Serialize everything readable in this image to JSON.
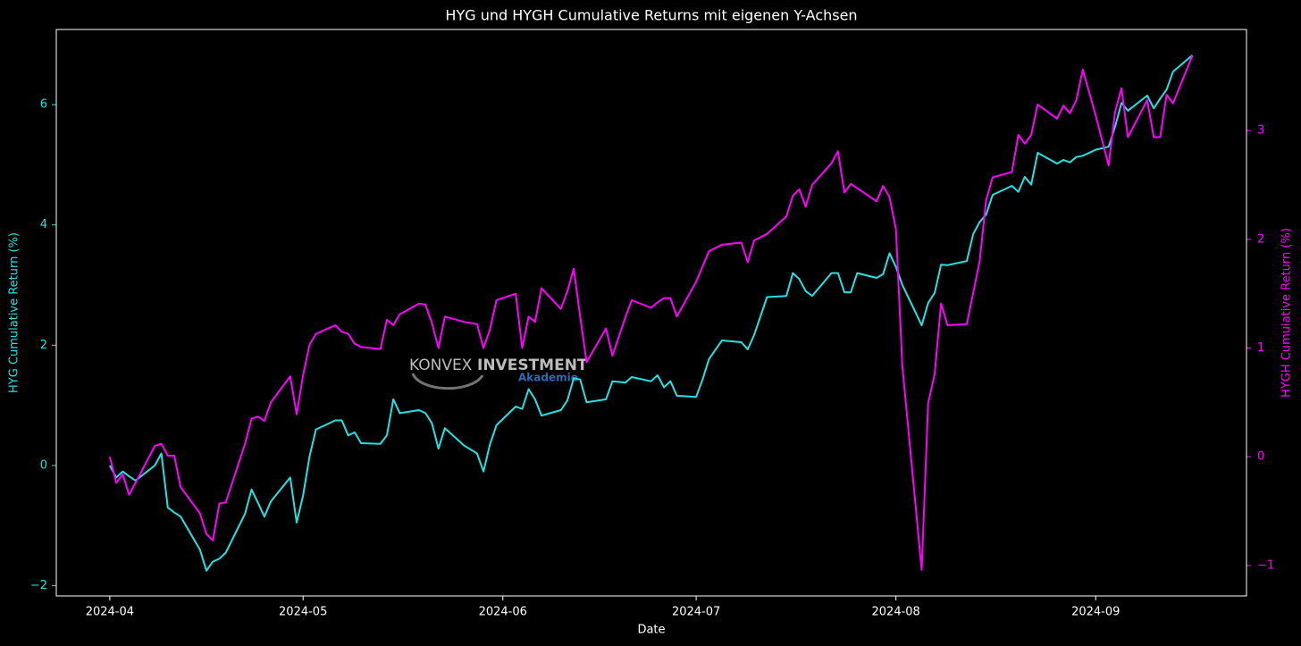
{
  "chart_data": {
    "type": "line",
    "title": "HYG und HYGH Cumulative Returns mit eigenen Y-Achsen",
    "x_label": "Date",
    "y_label": "HYG Cumulative Return (%)",
    "y2_label": "HYGH Cumulative Return (%)",
    "x": [
      0,
      1,
      2,
      3,
      4,
      7,
      8,
      9,
      10,
      11,
      14,
      15,
      16,
      17,
      18,
      21,
      22,
      23,
      24,
      25,
      28,
      29,
      30,
      31,
      32,
      35,
      36,
      37,
      38,
      39,
      42,
      43,
      44,
      45,
      48,
      49,
      50,
      51,
      52,
      55,
      57,
      58,
      59,
      60,
      63,
      64,
      65,
      66,
      67,
      70,
      71,
      72,
      73,
      74,
      77,
      78,
      80,
      81,
      84,
      85,
      86,
      87,
      88,
      91,
      92,
      93,
      95,
      98,
      99,
      100,
      102,
      105,
      106,
      107,
      108,
      109,
      112,
      113,
      114,
      115,
      116,
      119,
      120,
      121,
      122,
      123,
      126,
      127,
      128,
      129,
      130,
      133,
      134,
      135,
      136,
      137,
      140,
      141,
      142,
      143,
      144,
      147,
      148,
      149,
      150,
      151,
      153,
      155,
      156,
      157,
      158,
      161,
      162,
      163,
      164,
      165,
      168
    ],
    "xlim": [
      -8.3,
      176.4
    ],
    "xticks": [
      {
        "value": 0,
        "label": "2024-04"
      },
      {
        "value": 30,
        "label": "2024-05"
      },
      {
        "value": 61,
        "label": "2024-06"
      },
      {
        "value": 91,
        "label": "2024-07"
      },
      {
        "value": 122,
        "label": "2024-08"
      },
      {
        "value": 153,
        "label": "2024-09"
      }
    ],
    "ylim": [
      -2.17,
      7.25
    ],
    "yticks": [
      {
        "value": -2,
        "label": "−2"
      },
      0,
      2,
      4,
      6
    ],
    "y2lim": [
      -1.28,
      3.93
    ],
    "y2ticks": [
      {
        "value": -1,
        "label": "−1"
      },
      0,
      1,
      2,
      3
    ],
    "grid": false,
    "series": [
      {
        "name": "HYG",
        "color": "#22e3e3",
        "axis": "y",
        "values": [
          0,
          -0.2,
          -0.1,
          -0.18,
          -0.25,
          0,
          0.2,
          -0.7,
          -0.78,
          -0.85,
          -1.4,
          -1.75,
          -1.6,
          -1.55,
          -1.45,
          -0.8,
          -0.4,
          -0.62,
          -0.85,
          -0.6,
          -0.2,
          -0.95,
          -0.5,
          0.15,
          0.6,
          0.75,
          0.75,
          0.5,
          0.55,
          0.37,
          0.36,
          0.5,
          1.1,
          0.87,
          0.92,
          0.87,
          0.7,
          0.28,
          0.62,
          0.33,
          0.2,
          -0.1,
          0.35,
          0.67,
          0.98,
          0.94,
          1.27,
          1.1,
          0.83,
          0.92,
          1.08,
          1.45,
          1.43,
          1.05,
          1.1,
          1.4,
          1.38,
          1.47,
          1.4,
          1.5,
          1.3,
          1.4,
          1.16,
          1.14,
          1.43,
          1.77,
          2.08,
          2.05,
          1.93,
          2.17,
          2.8,
          2.82,
          3.2,
          3.1,
          2.9,
          2.82,
          3.2,
          3.2,
          2.88,
          2.88,
          3.2,
          3.12,
          3.18,
          3.53,
          3.3,
          3.0,
          2.33,
          2.7,
          2.87,
          3.34,
          3.33,
          3.4,
          3.85,
          4.05,
          4.17,
          4.5,
          4.65,
          4.55,
          4.8,
          4.67,
          5.2,
          5.02,
          5.08,
          5.04,
          5.13,
          5.15,
          5.25,
          5.3,
          5.63,
          6.03,
          5.9,
          6.15,
          5.94,
          6.1,
          6.25,
          6.55,
          6.82
        ]
      },
      {
        "name": "HYGH",
        "color": "#ff00ff",
        "axis": "y2",
        "values": [
          0,
          -0.24,
          -0.16,
          -0.35,
          -0.24,
          0.1,
          0.12,
          0.01,
          0.01,
          -0.28,
          -0.52,
          -0.71,
          -0.77,
          -0.43,
          -0.42,
          0.12,
          0.35,
          0.37,
          0.33,
          0.5,
          0.74,
          0.39,
          0.75,
          1.03,
          1.13,
          1.21,
          1.15,
          1.13,
          1.04,
          1.01,
          0.99,
          1.26,
          1.21,
          1.31,
          1.41,
          1.4,
          1.23,
          1.0,
          1.29,
          1.24,
          1.22,
          1.0,
          1.17,
          1.44,
          1.5,
          1.0,
          1.29,
          1.24,
          1.55,
          1.36,
          1.52,
          1.73,
          1.29,
          0.87,
          1.18,
          0.93,
          1.28,
          1.44,
          1.37,
          1.42,
          1.46,
          1.46,
          1.29,
          1.61,
          1.75,
          1.89,
          1.95,
          1.97,
          1.79,
          1.99,
          2.05,
          2.21,
          2.4,
          2.46,
          2.3,
          2.5,
          2.7,
          2.81,
          2.43,
          2.51,
          2.47,
          2.35,
          2.49,
          2.39,
          2.09,
          0.83,
          -1.04,
          0.49,
          0.76,
          1.41,
          1.21,
          1.22,
          1.51,
          1.8,
          2.36,
          2.57,
          2.62,
          2.96,
          2.88,
          2.96,
          3.24,
          3.11,
          3.23,
          3.16,
          3.28,
          3.56,
          3.14,
          2.68,
          3.17,
          3.39,
          2.94,
          3.28,
          2.94,
          2.94,
          3.33,
          3.25,
          3.69
        ]
      }
    ]
  },
  "watermark": {
    "brand": "KONVEX",
    "brand_bold": "INVESTMENT",
    "sub": "Akademie"
  }
}
